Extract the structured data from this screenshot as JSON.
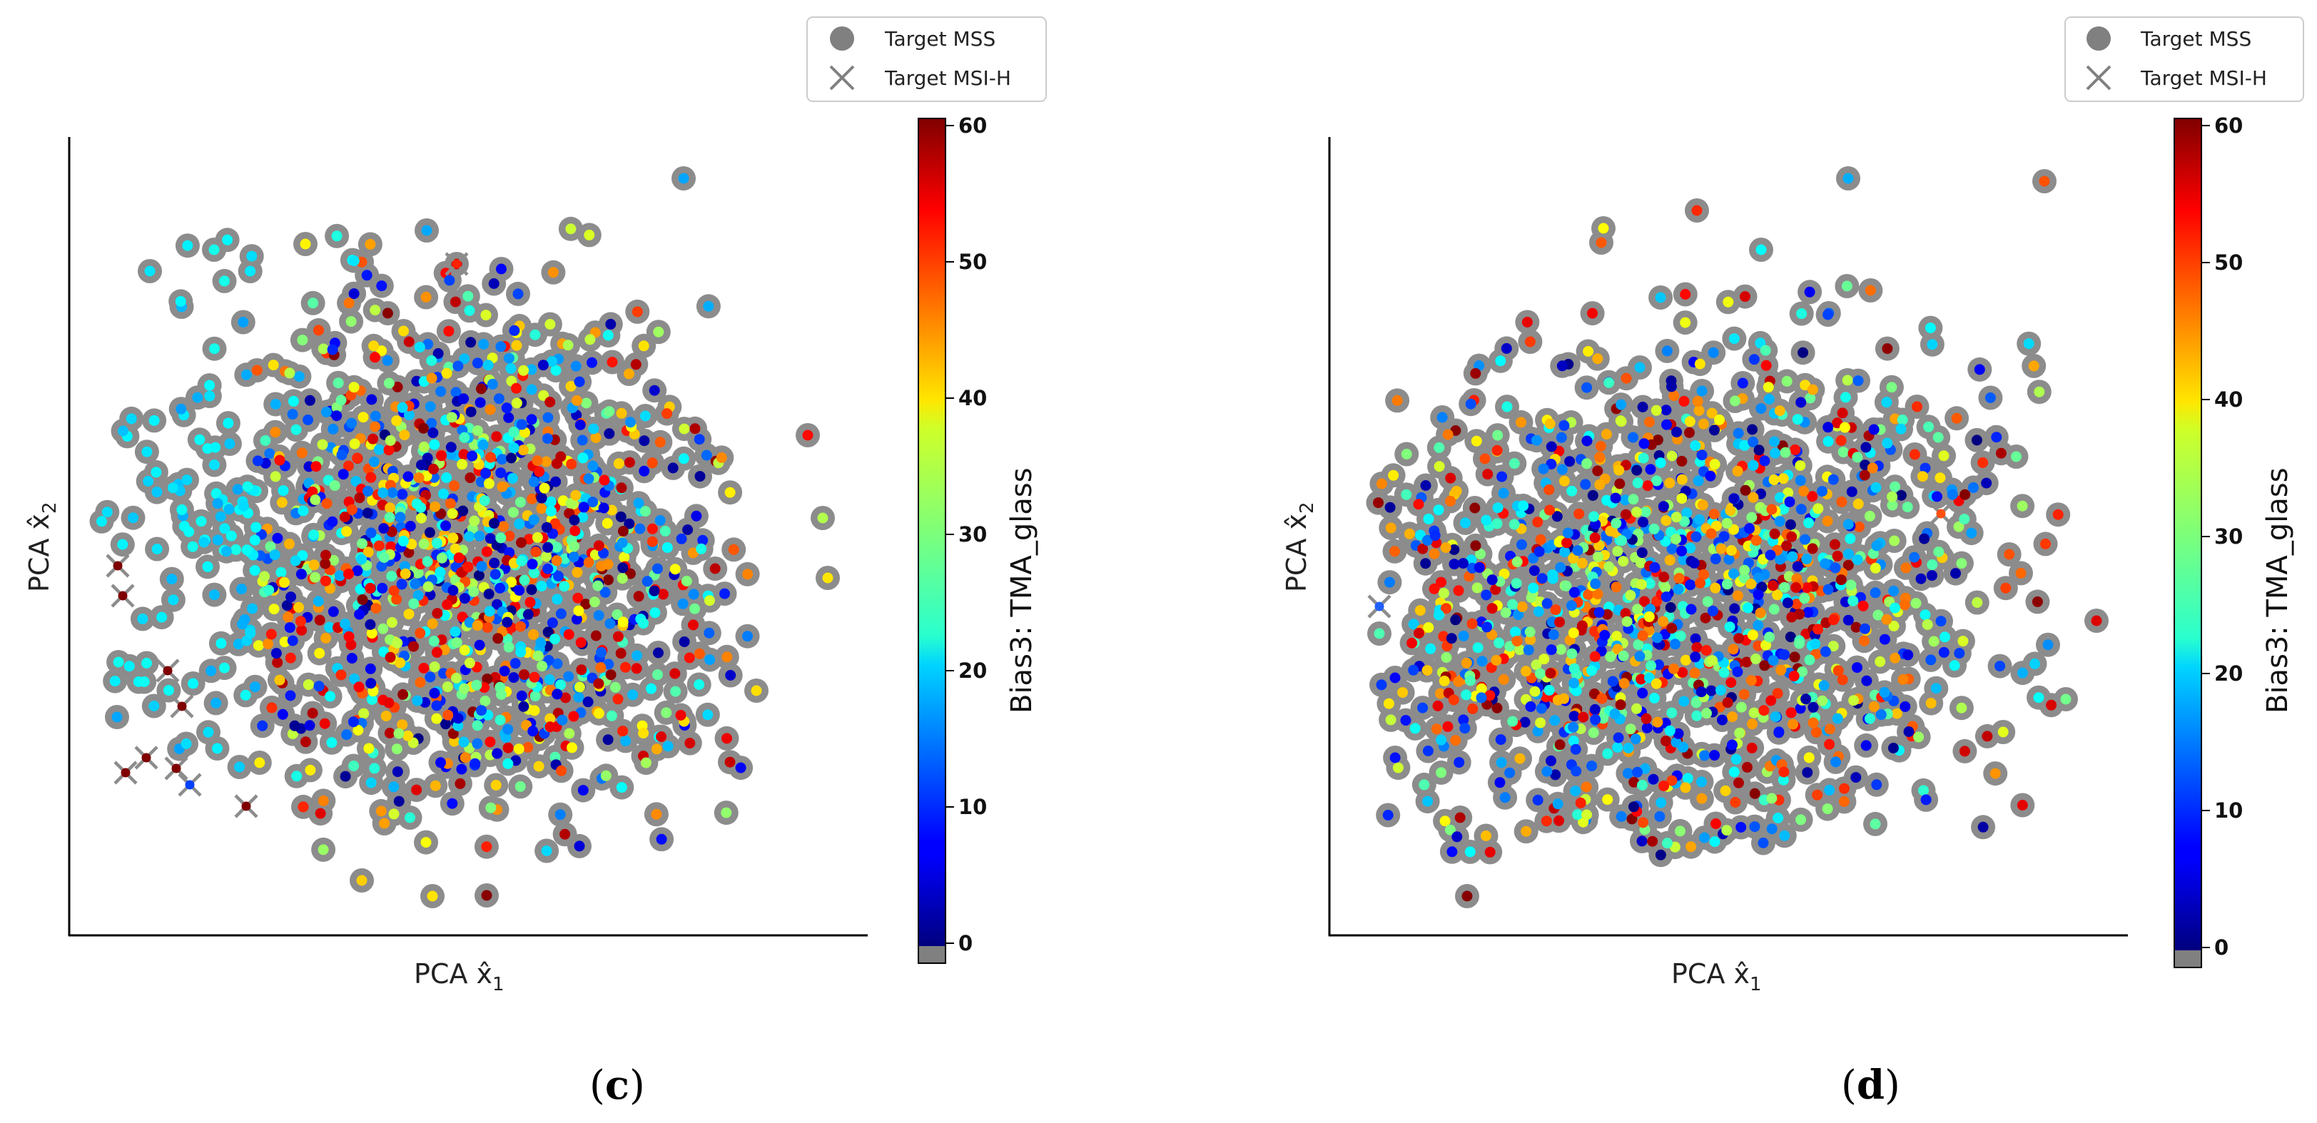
{
  "colors": {
    "mss_marker": "#808080",
    "msih_marker": "#808080",
    "nan_color": "#808080",
    "colormap": "jet"
  },
  "chart_data": [
    {
      "panel": "c",
      "type": "scatter",
      "xlabel": "PCA x̂",
      "xlabel_sub": "1",
      "ylabel": "PCA x̂",
      "ylabel_sub": "2",
      "colorbar": {
        "label": "Bias3: TMA_glass",
        "range": [
          0,
          60
        ],
        "ticks": [
          "0",
          "10",
          "20",
          "30",
          "40",
          "50",
          "60"
        ],
        "extend_min": true
      },
      "legend": {
        "placement": "top-right",
        "entries": [
          {
            "label": "Target MSS",
            "marker": "circle"
          },
          {
            "label": "Target MSI-H",
            "marker": "x"
          }
        ]
      },
      "grid": false,
      "series": [
        {
          "label": "Target MSS",
          "marker": "circle",
          "points": [],
          "values": []
        },
        {
          "label": "Target MSI-H",
          "marker": "x",
          "points": [],
          "values": []
        }
      ]
    },
    {
      "panel": "d",
      "type": "scatter",
      "xlabel": "PCA x̂",
      "xlabel_sub": "1",
      "ylabel": "PCA x̂",
      "ylabel_sub": "2",
      "colorbar": {
        "label": "Bias3: TMA_glass",
        "range": [
          0,
          60
        ],
        "ticks": [
          "0",
          "10",
          "20",
          "30",
          "40",
          "50",
          "60"
        ],
        "extend_min": true
      },
      "legend": {
        "placement": "top-right",
        "entries": [
          {
            "label": "Target MSS",
            "marker": "circle"
          },
          {
            "label": "Target MSI-H",
            "marker": "x"
          }
        ]
      },
      "grid": false,
      "series": [
        {
          "label": "Target MSS",
          "marker": "circle",
          "points": [],
          "values": []
        },
        {
          "label": "Target MSI-H",
          "marker": "x",
          "points": [],
          "values": []
        }
      ]
    }
  ],
  "panel_labels": [
    {
      "open": "(",
      "letter": "c",
      "close": ")"
    },
    {
      "open": "(",
      "letter": "d",
      "close": ")"
    }
  ]
}
